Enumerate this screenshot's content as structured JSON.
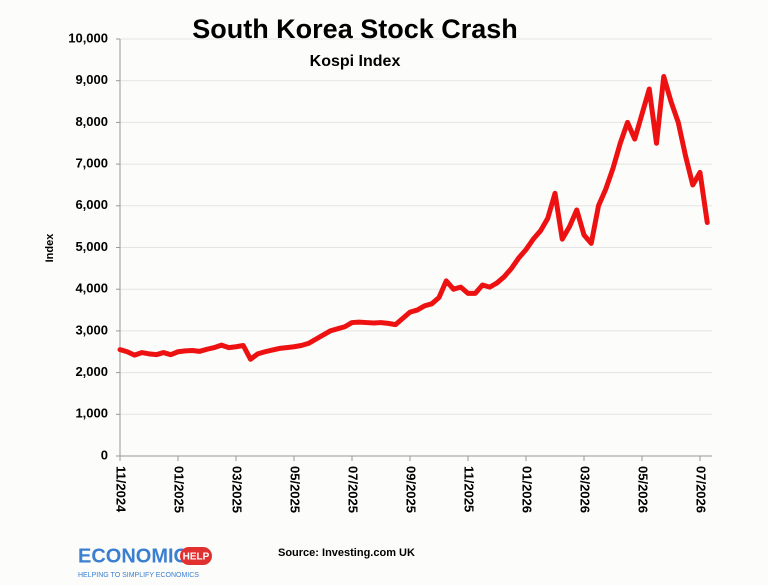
{
  "chart_data": {
    "type": "line",
    "title": "South Korea Stock Crash",
    "subtitle": "Kospi Index",
    "y_label": "Index",
    "source": "Source: Investing.com UK",
    "logo": {
      "name": "ECONOMICS",
      "badge": "HELP",
      "tagline": "HELPING TO SIMPLIFY ECONOMICS"
    },
    "color": "#ee1111",
    "categories": [
      "11/2024",
      null,
      null,
      null,
      null,
      null,
      null,
      null,
      "01/2025",
      null,
      null,
      null,
      null,
      null,
      null,
      null,
      "03/2025",
      null,
      null,
      null,
      null,
      null,
      null,
      null,
      "05/2025",
      null,
      null,
      null,
      null,
      null,
      null,
      null,
      "07/2025",
      null,
      null,
      null,
      null,
      null,
      null,
      null,
      "09/2025",
      null,
      null,
      null,
      null,
      null,
      null,
      null,
      "11/2025",
      null,
      null,
      null,
      null,
      null,
      null,
      null,
      "01/2026",
      null,
      null,
      null,
      null,
      null,
      null,
      null,
      "03/2026",
      null,
      null,
      null,
      null,
      null,
      null,
      null,
      "05/2026",
      null,
      null,
      null,
      null,
      null,
      null,
      null,
      "07/2026",
      null
    ],
    "values": [
      2550,
      2500,
      2420,
      2480,
      2450,
      2430,
      2480,
      2430,
      2500,
      2520,
      2530,
      2510,
      2560,
      2600,
      2660,
      2600,
      2620,
      2650,
      2320,
      2450,
      2500,
      2540,
      2580,
      2600,
      2620,
      2650,
      2700,
      2800,
      2900,
      3000,
      3050,
      3100,
      3200,
      3210,
      3200,
      3190,
      3200,
      3180,
      3150,
      3300,
      3450,
      3500,
      3600,
      3650,
      3800,
      4200,
      4000,
      4050,
      3900,
      3900,
      4100,
      4050,
      4150,
      4300,
      4500,
      4750,
      4950,
      5200,
      5400,
      5700,
      6300,
      5200,
      5500,
      5900,
      5300,
      5100,
      6000,
      6400,
      6900,
      7500,
      8000,
      7600,
      8200,
      8800,
      7500,
      9100,
      8500,
      8000,
      7200,
      6500,
      6800,
      5600
    ],
    "ylim": [
      0,
      10000
    ],
    "yticks": [
      0,
      {
        "value": 1000,
        "label": "1,000"
      },
      {
        "value": 2000,
        "label": "2,000"
      },
      {
        "value": 3000,
        "label": "3,000"
      },
      {
        "value": 4000,
        "label": "4,000"
      },
      {
        "value": 5000,
        "label": "5,000"
      },
      {
        "value": 6000,
        "label": "6,000"
      },
      {
        "value": 7000,
        "label": "7,000"
      },
      {
        "value": 8000,
        "label": "8,000"
      },
      {
        "value": 9000,
        "label": "9,000"
      },
      {
        "value": 10000,
        "label": "10,000"
      }
    ],
    "grid": true
  }
}
